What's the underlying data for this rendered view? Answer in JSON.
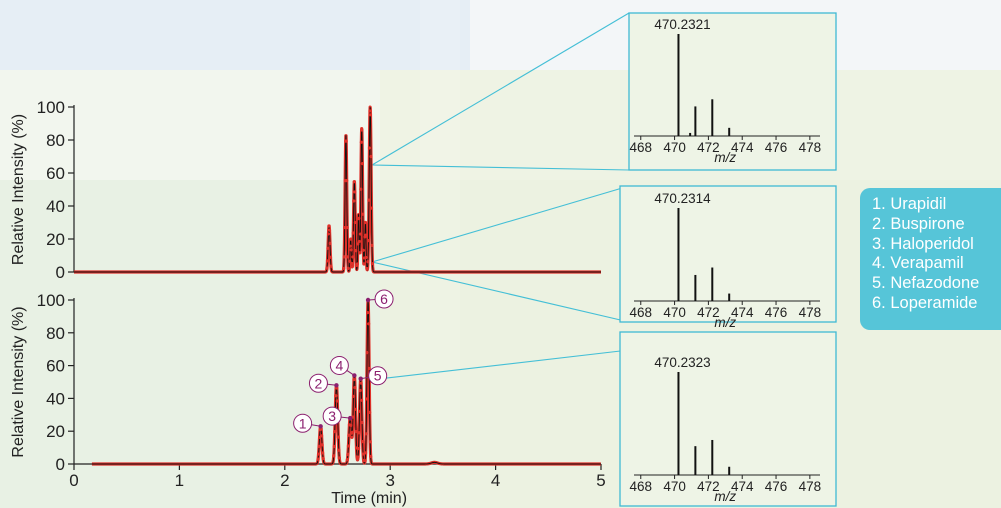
{
  "colors": {
    "trace": "#e0312a",
    "trace_line": "#111111",
    "peak_label": "#8b1f6e",
    "inset_border": "#3fb9d3",
    "connector": "#44bfd6",
    "legend_bg": "#56c5d8",
    "legend_text": "#ffffff"
  },
  "legend": {
    "items": [
      "1. Urapidil",
      "2. Buspirone",
      "3. Haloperidol",
      "4. Verapamil",
      "5. Nefazodone",
      "6. Loperamide"
    ]
  },
  "chart_data": [
    {
      "type": "line",
      "id": "chromatogram-top",
      "ylabel": "Relative Intensity (%)",
      "xlabel": "",
      "xlim": [
        0,
        5
      ],
      "ylim": [
        0,
        100
      ],
      "yticks": [
        0,
        20,
        40,
        60,
        80,
        100
      ],
      "xtick_labels_shown": false,
      "baseline_range": [
        0,
        5
      ],
      "peaks": [
        {
          "t": 2.42,
          "h": 28,
          "w": 0.009
        },
        {
          "t": 2.58,
          "h": 83,
          "w": 0.008
        },
        {
          "t": 2.625,
          "h": 20,
          "w": 0.006
        },
        {
          "t": 2.66,
          "h": 55,
          "w": 0.008
        },
        {
          "t": 2.7,
          "h": 35,
          "w": 0.006
        },
        {
          "t": 2.73,
          "h": 87,
          "w": 0.008
        },
        {
          "t": 2.765,
          "h": 30,
          "w": 0.006
        },
        {
          "t": 2.81,
          "h": 100,
          "w": 0.009
        }
      ]
    },
    {
      "type": "line",
      "id": "chromatogram-bottom",
      "ylabel": "Relative Intensity (%)",
      "xlabel": "Time (min)",
      "xlim": [
        0,
        5
      ],
      "ylim": [
        0,
        100
      ],
      "yticks": [
        0,
        20,
        40,
        60,
        80,
        100
      ],
      "xticks": [
        0,
        1,
        2,
        3,
        4,
        5
      ],
      "baseline_range": [
        0.17,
        5
      ],
      "peaks": [
        {
          "t": 2.34,
          "h": 23,
          "w": 0.012
        },
        {
          "t": 2.49,
          "h": 48,
          "w": 0.012
        },
        {
          "t": 2.62,
          "h": 28,
          "w": 0.012
        },
        {
          "t": 2.66,
          "h": 54,
          "w": 0.011
        },
        {
          "t": 2.72,
          "h": 52,
          "w": 0.011
        },
        {
          "t": 2.79,
          "h": 100,
          "w": 0.01
        },
        {
          "t": 3.42,
          "h": 1.0,
          "w": 0.03
        }
      ],
      "peak_labels": [
        {
          "label": "1",
          "t": 2.34,
          "y": 23
        },
        {
          "label": "2",
          "t": 2.49,
          "y": 48
        },
        {
          "label": "3",
          "t": 2.62,
          "y": 28
        },
        {
          "label": "4",
          "t": 2.66,
          "y": 54
        },
        {
          "label": "5",
          "t": 2.72,
          "y": 52
        },
        {
          "label": "6",
          "t": 2.79,
          "y": 100
        }
      ]
    },
    {
      "type": "bar",
      "id": "mass-spectrum-1",
      "title": "470.2321",
      "xlabel": "m/z",
      "xlim": [
        467.6,
        478.6
      ],
      "xticks": [
        468,
        470,
        472,
        474,
        476,
        478
      ],
      "ylim": [
        0,
        100
      ],
      "sticks": [
        {
          "mz": 470.23,
          "i": 100
        },
        {
          "mz": 470.92,
          "i": 3
        },
        {
          "mz": 471.23,
          "i": 29
        },
        {
          "mz": 472.23,
          "i": 36
        },
        {
          "mz": 473.23,
          "i": 8
        }
      ]
    },
    {
      "type": "bar",
      "id": "mass-spectrum-2",
      "title": "470.2314",
      "xlabel": "m/z",
      "xlim": [
        467.6,
        478.6
      ],
      "xticks": [
        468,
        470,
        472,
        474,
        476,
        478
      ],
      "ylim": [
        0,
        100
      ],
      "sticks": [
        {
          "mz": 470.23,
          "i": 100
        },
        {
          "mz": 471.23,
          "i": 28
        },
        {
          "mz": 472.23,
          "i": 36
        },
        {
          "mz": 473.23,
          "i": 8
        }
      ]
    },
    {
      "type": "bar",
      "id": "mass-spectrum-3",
      "title": "470.2323",
      "xlabel": "m/z",
      "xlim": [
        467.6,
        478.6
      ],
      "xticks": [
        468,
        470,
        472,
        474,
        476,
        478
      ],
      "ylim": [
        0,
        100
      ],
      "sticks": [
        {
          "mz": 470.23,
          "i": 100
        },
        {
          "mz": 471.23,
          "i": 28
        },
        {
          "mz": 472.23,
          "i": 34
        },
        {
          "mz": 473.23,
          "i": 8
        }
      ]
    }
  ]
}
